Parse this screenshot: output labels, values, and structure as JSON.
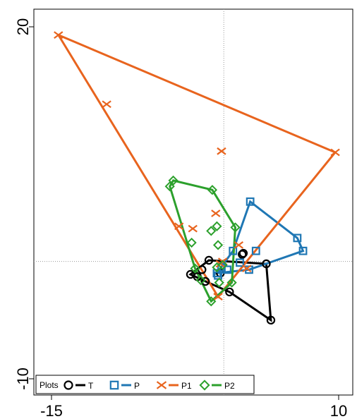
{
  "chart_data": {
    "type": "scatter",
    "title": "",
    "xlabel": "",
    "ylabel": "",
    "xlim": [
      -15,
      10
    ],
    "ylim": [
      -10,
      20
    ],
    "x_ticks": [
      {
        "value": -15,
        "label": "-15"
      },
      {
        "value": 10,
        "label": "10"
      }
    ],
    "y_ticks": [
      {
        "value": 20,
        "label": "20"
      },
      {
        "value": -10,
        "label": "-10"
      }
    ],
    "reference_lines": {
      "x": 0,
      "y": 0,
      "style": "dotted"
    },
    "legend": {
      "title": "Plots",
      "placement": "bottom-left"
    },
    "series": [
      {
        "name": "T",
        "color": "#000000",
        "marker": "circle",
        "hull": [
          [
            -2.9,
            -1.1
          ],
          [
            -1.3,
            0.1
          ],
          [
            3.7,
            -0.2
          ],
          [
            4.1,
            -5.0
          ],
          [
            0.5,
            -2.6
          ],
          [
            -1.6,
            -1.7
          ]
        ],
        "points": [
          [
            -2.9,
            -1.1
          ],
          [
            -2.3,
            -1.3
          ],
          [
            -1.9,
            -0.7
          ],
          [
            -1.3,
            0.1
          ],
          [
            -1.6,
            -1.7
          ],
          [
            0.5,
            -2.6
          ],
          [
            1.6,
            0.6
          ],
          [
            1.7,
            0.7
          ],
          [
            3.7,
            -0.2
          ],
          [
            4.1,
            -5.0
          ],
          [
            -0.3,
            -1.0
          ]
        ]
      },
      {
        "name": "P",
        "color": "#1f77b4",
        "marker": "square",
        "hull": [
          [
            -0.6,
            -1.0
          ],
          [
            0.8,
            0.9
          ],
          [
            2.3,
            5.1
          ],
          [
            6.4,
            2.0
          ],
          [
            6.9,
            0.9
          ],
          [
            2.2,
            -0.7
          ]
        ],
        "points": [
          [
            -0.6,
            -1.0
          ],
          [
            0.3,
            -0.7
          ],
          [
            0.8,
            0.9
          ],
          [
            1.4,
            -0.1
          ],
          [
            2.3,
            5.1
          ],
          [
            2.2,
            -0.7
          ],
          [
            2.8,
            0.9
          ],
          [
            6.4,
            2.0
          ],
          [
            6.9,
            0.9
          ],
          [
            -0.5,
            -1.2
          ],
          [
            -0.2,
            -0.5
          ]
        ]
      },
      {
        "name": "P1",
        "color": "#e8641e",
        "marker": "x",
        "hull": [
          [
            -14.4,
            19.3
          ],
          [
            9.7,
            9.3
          ],
          [
            -0.5,
            -3.0
          ]
        ],
        "points": [
          [
            -14.4,
            19.3
          ],
          [
            -10.2,
            13.4
          ],
          [
            -3.9,
            3.0
          ],
          [
            -2.7,
            2.8
          ],
          [
            -0.2,
            9.4
          ],
          [
            -0.7,
            4.1
          ],
          [
            1.3,
            1.4
          ],
          [
            2.0,
            -0.6
          ],
          [
            9.7,
            9.3
          ],
          [
            -0.5,
            -3.0
          ],
          [
            -0.3,
            -0.2
          ],
          [
            -0.1,
            0.0
          ]
        ]
      },
      {
        "name": "P2",
        "color": "#2ca02c",
        "marker": "diamond",
        "hull": [
          [
            -4.7,
            6.4
          ],
          [
            -4.4,
            6.9
          ],
          [
            -1.0,
            6.1
          ],
          [
            1.0,
            2.9
          ],
          [
            0.7,
            -1.8
          ],
          [
            -1.1,
            -3.4
          ],
          [
            -2.5,
            -0.6
          ]
        ],
        "points": [
          [
            -4.7,
            6.4
          ],
          [
            -4.4,
            6.9
          ],
          [
            -1.0,
            6.1
          ],
          [
            -1.1,
            2.6
          ],
          [
            -0.6,
            3.0
          ],
          [
            -0.5,
            1.4
          ],
          [
            1.0,
            2.9
          ],
          [
            -2.8,
            1.6
          ],
          [
            -2.5,
            -0.6
          ],
          [
            -2.0,
            -1.6
          ],
          [
            -1.1,
            -3.4
          ],
          [
            -0.4,
            -1.8
          ],
          [
            0.7,
            -1.8
          ],
          [
            -0.1,
            -0.3
          ],
          [
            -0.6,
            -0.5
          ]
        ]
      }
    ]
  }
}
